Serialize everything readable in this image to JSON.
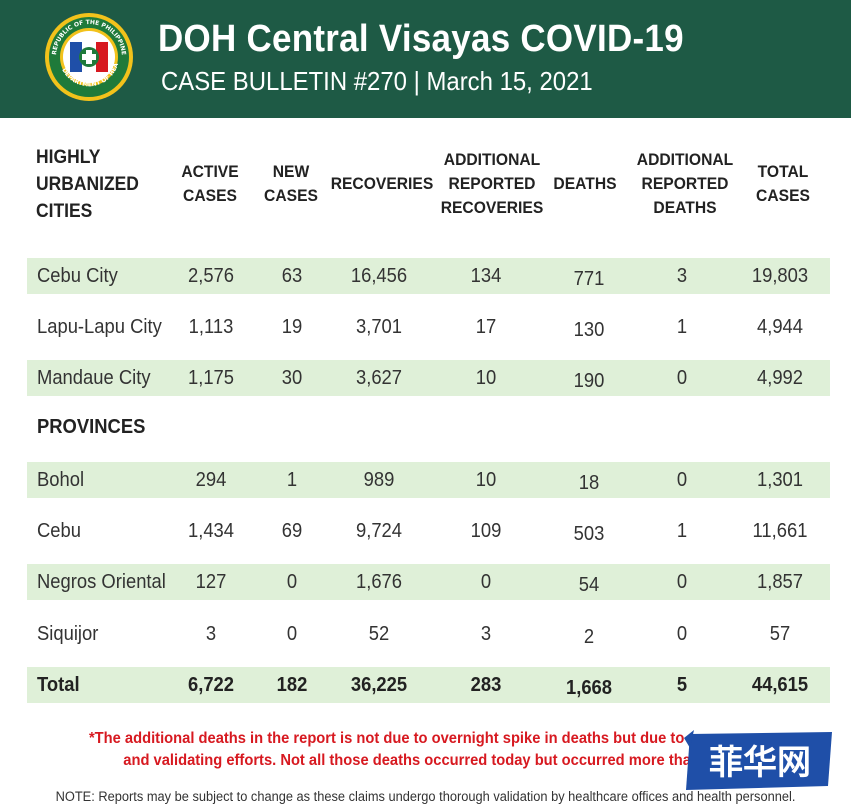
{
  "header": {
    "title": "DOH Central Visayas COVID-19",
    "subtitle": "CASE BULLETIN #270 | March 15, 2021",
    "seal_text": "REPUBLIC OF THE PHILIPPINES · DEPARTMENT OF HEALTH"
  },
  "columns": {
    "first": [
      "HIGHLY",
      "URBANIZED",
      "CITIES"
    ],
    "active": [
      "ACTIVE",
      "CASES"
    ],
    "new": [
      "NEW",
      "CASES"
    ],
    "recoveries": [
      "RECOVERIES"
    ],
    "add_recoveries": [
      "ADDITIONAL",
      "REPORTED",
      "RECOVERIES"
    ],
    "deaths": [
      "DEATHS"
    ],
    "add_deaths": [
      "ADDITIONAL",
      "REPORTED",
      "DEATHS"
    ],
    "total": [
      "TOTAL",
      "CASES"
    ]
  },
  "cities": [
    {
      "name": "Cebu City",
      "active": "2,576",
      "new": "63",
      "recoveries": "16,456",
      "add_recoveries": "134",
      "deaths": "771",
      "add_deaths": "3",
      "total": "19,803"
    },
    {
      "name": "Lapu-Lapu City",
      "active": "1,113",
      "new": "19",
      "recoveries": "3,701",
      "add_recoveries": "17",
      "deaths": "130",
      "add_deaths": "1",
      "total": "4,944"
    },
    {
      "name": "Mandaue City",
      "active": "1,175",
      "new": "30",
      "recoveries": "3,627",
      "add_recoveries": "10",
      "deaths": "190",
      "add_deaths": "0",
      "total": "4,992"
    }
  ],
  "provinces_label": "PROVINCES",
  "provinces": [
    {
      "name": "Bohol",
      "active": "294",
      "new": "1",
      "recoveries": "989",
      "add_recoveries": "10",
      "deaths": "18",
      "add_deaths": "0",
      "total": "1,301"
    },
    {
      "name": "Cebu",
      "active": "1,434",
      "new": "69",
      "recoveries": "9,724",
      "add_recoveries": "109",
      "deaths": "503",
      "add_deaths": "1",
      "total": "11,661"
    },
    {
      "name": "Negros Oriental",
      "active": "127",
      "new": "0",
      "recoveries": "1,676",
      "add_recoveries": "0",
      "deaths": "54",
      "add_deaths": "0",
      "total": "1,857"
    },
    {
      "name": "Siquijor",
      "active": "3",
      "new": "0",
      "recoveries": "52",
      "add_recoveries": "3",
      "deaths": "2",
      "add_deaths": "0",
      "total": "57"
    }
  ],
  "total": {
    "name": "Total",
    "active": "6,722",
    "new": "182",
    "recoveries": "36,225",
    "add_recoveries": "283",
    "deaths": "1,668",
    "add_deaths": "5",
    "total": "44,615"
  },
  "footnote": {
    "line1": "*The additional deaths in the report is not due to overnight spike in deaths but due to more accu",
    "line2": "and validating efforts. Not all those deaths occurred today but occurred more than a w"
  },
  "note": "NOTE: Reports may be subject to change as these claims undergo thorough validation by healthcare offices and health personnel.",
  "watermark": {
    "text": "菲华网"
  },
  "colors": {
    "header_bg": "#1e5a45",
    "row_shade": "#dff0d8",
    "footnote_red": "#d71920",
    "watermark_blue": "#1f4fa8"
  }
}
